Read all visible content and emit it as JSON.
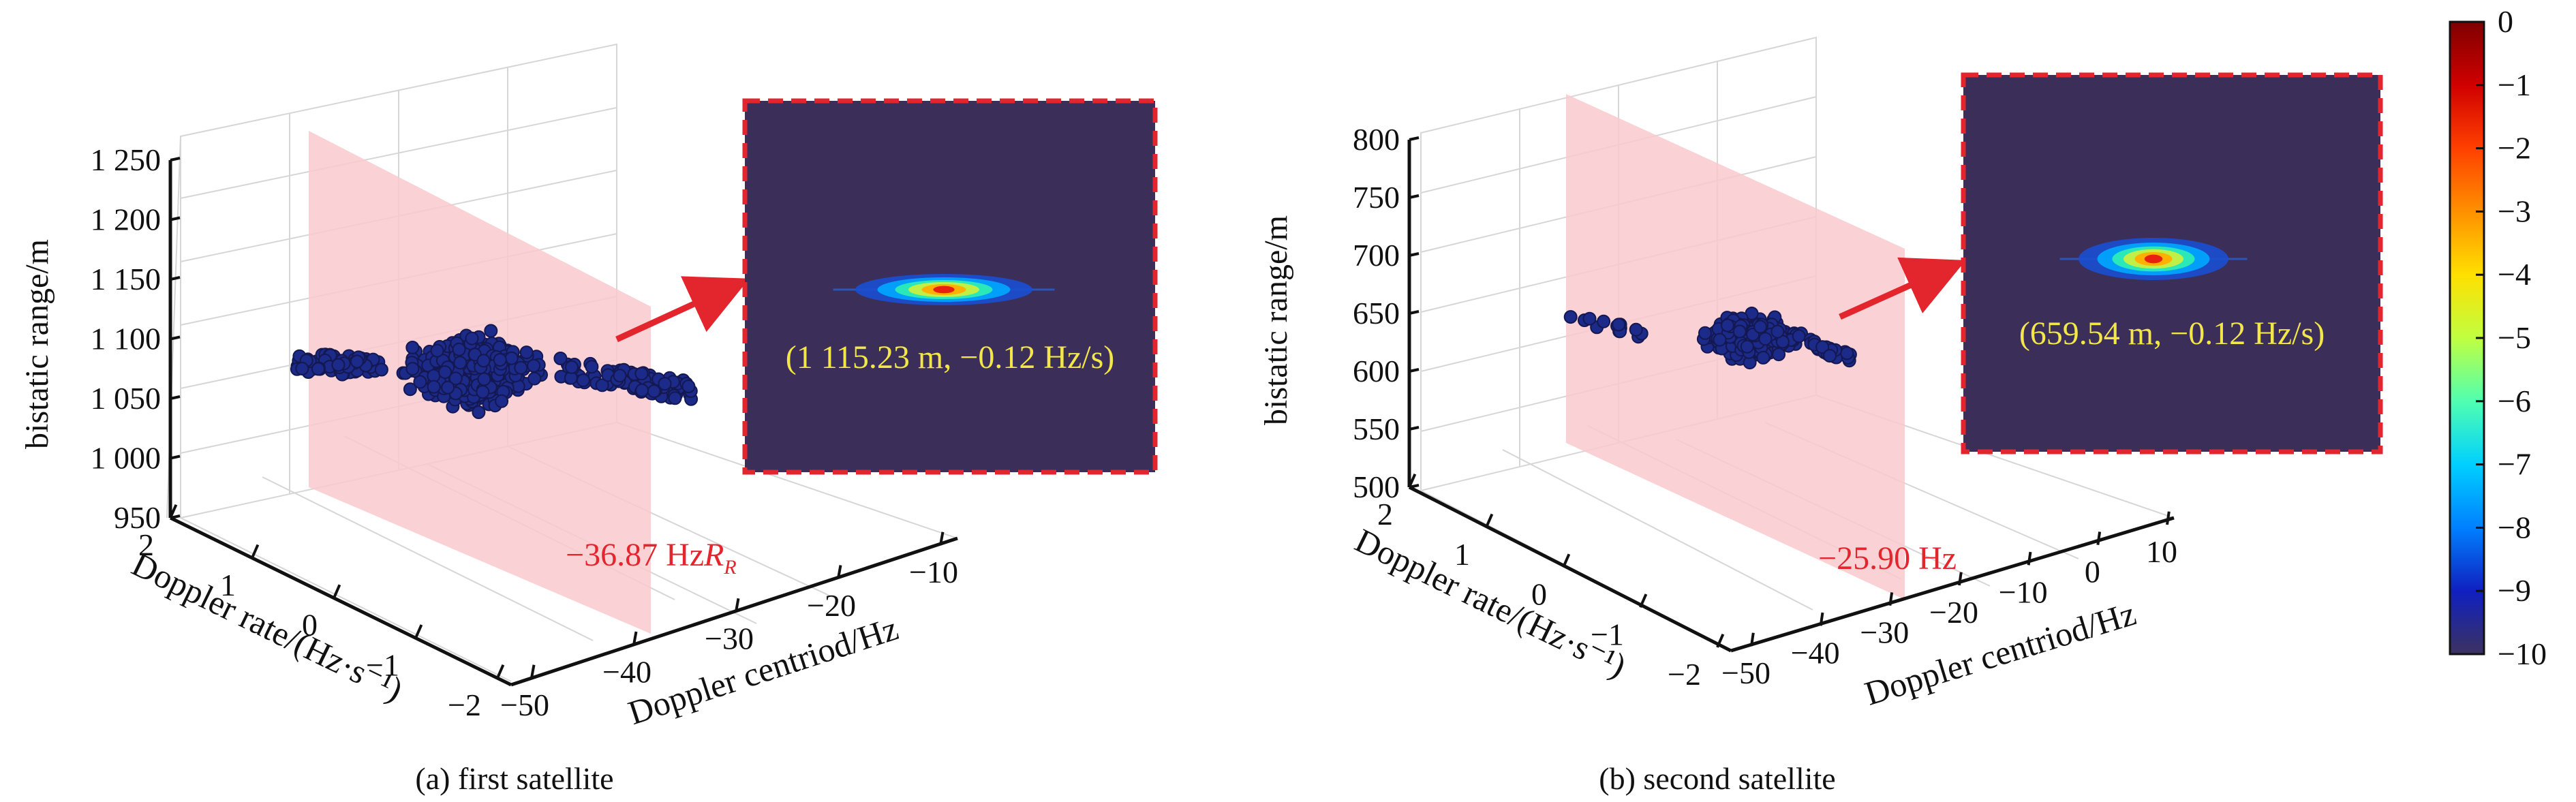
{
  "figure": {
    "colorbar": {
      "ticks": [
        "0",
        "−1",
        "−2",
        "−3",
        "−4",
        "−5",
        "−6",
        "−7",
        "−8",
        "−9",
        "−10"
      ],
      "colormap": [
        "#800000",
        "#d00000",
        "#ff4000",
        "#ff9000",
        "#ffe000",
        "#c0ff40",
        "#50ffb0",
        "#00d0ff",
        "#0080ff",
        "#1020c0",
        "#3c3260"
      ]
    }
  },
  "colors": {
    "slice_fill": "#f9c9cc",
    "annotation_red": "#e3262d",
    "annotation_yellow": "#f2e64a",
    "inset_background": "#3b2f59",
    "inset_border": "#e3262d",
    "point_color": "#1c2a8a",
    "point_dark": "#141850"
  },
  "chart_data": [
    {
      "type": "scatter",
      "caption": "(a) first satellite",
      "zlabel": "bistatic range/m",
      "xlabel": "Doppler centriod/Hz",
      "ylabel": "Doppler rate/(Hz·s⁻¹)",
      "x_ticks": [
        "−50",
        "−40",
        "−30",
        "−20",
        "−10"
      ],
      "y_ticks": [
        "2",
        "1",
        "0",
        "−1",
        "−2"
      ],
      "z_ticks": [
        "950",
        "1 000",
        "1 050",
        "1 100",
        "1 150",
        "1 200",
        "1 250"
      ],
      "xlim": [
        -50,
        -10
      ],
      "ylim": [
        -2,
        2
      ],
      "zlim": [
        950,
        1250
      ],
      "slice_label": "−36.87 Hz",
      "slice_label_extra": "R",
      "slice_label_sub": "R",
      "inset_label": "(1 115.23 m, −0.12 Hz/s)",
      "peak": {
        "range_m": 1115.23,
        "rate_hz_s": -0.12,
        "centroid_hz": -36.87
      }
    },
    {
      "type": "scatter",
      "caption": "(b) second satellite",
      "zlabel": "bistatic range/m",
      "xlabel": "Doppler centriod/Hz",
      "ylabel": "Doppler rate/(Hz·s⁻¹)",
      "x_ticks": [
        "−50",
        "−40",
        "−30",
        "−20",
        "−10",
        "0",
        "10"
      ],
      "y_ticks": [
        "2",
        "1",
        "0",
        "−1",
        "−2"
      ],
      "z_ticks": [
        "500",
        "550",
        "600",
        "650",
        "700",
        "750",
        "800"
      ],
      "xlim": [
        -50,
        10
      ],
      "ylim": [
        -2,
        2
      ],
      "zlim": [
        500,
        800
      ],
      "slice_label": "−25.90 Hz",
      "inset_label": "(659.54 m, −0.12 Hz/s)",
      "peak": {
        "range_m": 659.54,
        "rate_hz_s": -0.12,
        "centroid_hz": -25.9
      }
    }
  ]
}
